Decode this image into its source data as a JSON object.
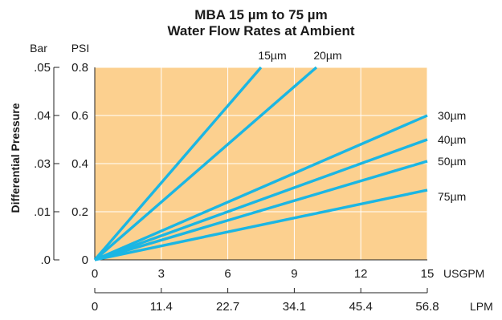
{
  "chart_data": {
    "type": "line",
    "title": "MBA 15 µm to 75 µm",
    "subtitle": "Water Flow Rates at Ambient",
    "ylabel": "Differential Pressure",
    "x_primary": {
      "unit": "USGPM",
      "ticks": [
        0,
        3,
        6,
        9,
        12,
        15
      ],
      "tick_labels": [
        "0",
        "3",
        "6",
        "9",
        "12",
        "15"
      ],
      "range": [
        0,
        15
      ]
    },
    "x_secondary": {
      "unit": "LPM",
      "tick_labels": [
        "0",
        "11.4",
        "22.7",
        "34.1",
        "45.4",
        "56.8"
      ]
    },
    "y_primary": {
      "unit": "PSI",
      "ticks": [
        0,
        0.2,
        0.4,
        0.6,
        0.8
      ],
      "tick_labels": [
        "0",
        "0.2",
        "0.4",
        "0.6",
        "0.8"
      ],
      "range": [
        0,
        0.8
      ]
    },
    "y_secondary": {
      "unit": "Bar",
      "tick_labels": [
        ".0",
        ".01",
        ".03",
        ".04",
        ".05"
      ]
    },
    "grid": true,
    "plot_background": "#fcd08f",
    "line_color": "#1bb6e3",
    "series": [
      {
        "name": "15µm",
        "x": [
          0,
          7.5
        ],
        "y": [
          0,
          0.8
        ]
      },
      {
        "name": "20µm",
        "x": [
          0,
          10
        ],
        "y": [
          0,
          0.8
        ]
      },
      {
        "name": "30µm",
        "x": [
          0,
          15
        ],
        "y": [
          0,
          0.6
        ]
      },
      {
        "name": "40µm",
        "x": [
          0,
          15
        ],
        "y": [
          0,
          0.5
        ]
      },
      {
        "name": "50µm",
        "x": [
          0,
          15
        ],
        "y": [
          0,
          0.41
        ]
      },
      {
        "name": "75µm",
        "x": [
          0,
          15
        ],
        "y": [
          0,
          0.29
        ]
      }
    ]
  }
}
